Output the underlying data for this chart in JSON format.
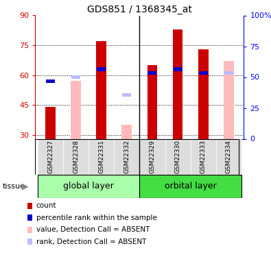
{
  "title": "GDS851 / 1368345_at",
  "samples": [
    "GSM22327",
    "GSM22328",
    "GSM22331",
    "GSM22332",
    "GSM22329",
    "GSM22330",
    "GSM22333",
    "GSM22334"
  ],
  "red_bars": [
    44,
    null,
    77,
    null,
    65,
    83,
    73,
    null
  ],
  "pink_bars": [
    null,
    57,
    null,
    35,
    null,
    null,
    null,
    67
  ],
  "blue_squares": [
    57,
    null,
    63,
    null,
    61,
    63,
    61,
    null
  ],
  "light_blue_squares": [
    null,
    59,
    null,
    50,
    null,
    null,
    null,
    61
  ],
  "ylim_left": [
    28,
    90
  ],
  "ylim_right": [
    0,
    100
  ],
  "yticks_left": [
    30,
    45,
    60,
    75,
    90
  ],
  "yticks_right": [
    0,
    25,
    50,
    75,
    100
  ],
  "ytick_labels_right": [
    "0",
    "25",
    "50",
    "75",
    "100%"
  ],
  "bar_width": 0.4,
  "red_color": "#cc0000",
  "pink_color": "#ffbbbb",
  "blue_color": "#0000cc",
  "light_blue_color": "#bbbbff",
  "global_layer_color": "#aaffaa",
  "orbital_layer_color": "#44dd44",
  "sample_box_color": "#dddddd",
  "legend_items": [
    {
      "label": "count",
      "color": "#cc0000"
    },
    {
      "label": "percentile rank within the sample",
      "color": "#0000cc"
    },
    {
      "label": "value, Detection Call = ABSENT",
      "color": "#ffbbbb"
    },
    {
      "label": "rank, Detection Call = ABSENT",
      "color": "#bbbbff"
    }
  ],
  "n_global": 4,
  "n_orbital": 4,
  "split_at": 3.5
}
